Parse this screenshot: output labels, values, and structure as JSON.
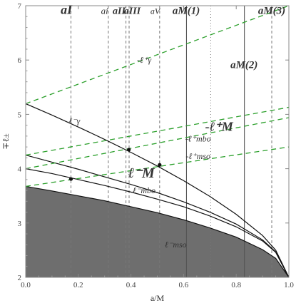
{
  "chart_data": {
    "type": "line",
    "xlabel": "a/M",
    "ylabel": "∓ℓ±",
    "xlim": [
      0,
      1
    ],
    "ylim": [
      2,
      7
    ],
    "grid": false,
    "x_ticks": [
      {
        "value": 0.0,
        "label": "0.0"
      },
      {
        "value": 0.2,
        "label": "0.2"
      },
      {
        "value": 0.4,
        "label": "0.4"
      },
      {
        "value": 0.6,
        "label": "0.6"
      },
      {
        "value": 0.8,
        "label": "0.8"
      },
      {
        "value": 1.0,
        "label": "1.0"
      }
    ],
    "y_ticks": [
      {
        "value": 2,
        "label": "2"
      },
      {
        "value": 3,
        "label": "3"
      },
      {
        "value": 4,
        "label": "4"
      },
      {
        "value": 5,
        "label": "5"
      },
      {
        "value": 6,
        "label": "6"
      },
      {
        "value": 7,
        "label": "7"
      }
    ],
    "shaded_region": {
      "name": "ℓ⁻mso",
      "color": "#6e6e6e"
    },
    "series": [
      {
        "name": "ℓ⁻γ",
        "style": "solid",
        "color": "#111111",
        "x": [
          0,
          0.1,
          0.2,
          0.3,
          0.4,
          0.5,
          0.6,
          0.7,
          0.8,
          0.9,
          0.95,
          1.0
        ],
        "y": [
          5.196,
          4.986,
          4.767,
          4.539,
          4.3,
          4.05,
          3.78,
          3.49,
          3.16,
          2.77,
          2.5,
          2.0
        ]
      },
      {
        "name": "ℓ⁻mbo",
        "style": "solid",
        "color": "#111111",
        "x": [
          0,
          0.1,
          0.2,
          0.3,
          0.4,
          0.5,
          0.6,
          0.7,
          0.8,
          0.9,
          0.95,
          1.0
        ],
        "y": [
          4.0,
          3.91,
          3.8,
          3.69,
          3.57,
          3.44,
          3.3,
          3.13,
          2.93,
          2.67,
          2.46,
          2.0
        ]
      },
      {
        "name": "ℓ⁻mso",
        "style": "solid",
        "color": "#111111",
        "x": [
          0,
          0.1,
          0.2,
          0.3,
          0.4,
          0.5,
          0.6,
          0.7,
          0.8,
          0.9,
          0.95,
          1.0
        ],
        "y": [
          3.674,
          3.59,
          3.5,
          3.41,
          3.3,
          3.19,
          3.06,
          2.91,
          2.74,
          2.51,
          2.35,
          2.0
        ]
      },
      {
        "name": "ℓ⁻M",
        "style": "solid",
        "color": "#111111",
        "x": [
          0,
          0.1,
          0.2,
          0.3,
          0.4,
          0.5,
          0.6,
          0.7,
          0.8,
          0.9,
          0.95,
          1.0
        ],
        "y": [
          4.25,
          4.12,
          3.99,
          3.85,
          3.71,
          3.56,
          3.39,
          3.2,
          2.98,
          2.69,
          2.47,
          2.0
        ]
      },
      {
        "name": "-ℓ⁺γ",
        "style": "dashed",
        "color": "#2ca02c",
        "x": [
          0,
          1
        ],
        "y": [
          5.196,
          7.0
        ]
      },
      {
        "name": "-ℓ⁺mbo",
        "style": "dashed",
        "color": "#2ca02c",
        "x": [
          0,
          1
        ],
        "y": [
          4.0,
          4.94
        ]
      },
      {
        "name": "-ℓ⁺M",
        "style": "dashed",
        "color": "#2ca02c",
        "x": [
          0,
          1
        ],
        "y": [
          4.25,
          5.13
        ]
      },
      {
        "name": "-ℓ⁺mso",
        "style": "dashed",
        "color": "#2ca02c",
        "x": [
          0,
          1
        ],
        "y": [
          3.674,
          4.4
        ]
      }
    ],
    "marked_points": [
      {
        "x": 0.172,
        "y": 3.81
      },
      {
        "x": 0.392,
        "y": 4.35
      },
      {
        "x": 0.509,
        "y": 4.07
      }
    ],
    "vertical_lines": [
      {
        "x": 0.172,
        "style": "dashed",
        "color": "#777777"
      },
      {
        "x": 0.314,
        "style": "dashed",
        "color": "#777777"
      },
      {
        "x": 0.381,
        "style": "dashed",
        "color": "#777777"
      },
      {
        "x": 0.393,
        "style": "dashed",
        "color": "#777777"
      },
      {
        "x": 0.509,
        "style": "dashed",
        "color": "#777777"
      },
      {
        "x": 0.611,
        "style": "solid",
        "color": "#555555"
      },
      {
        "x": 0.703,
        "style": "dotted",
        "color": "#777777"
      },
      {
        "x": 0.831,
        "style": "solid",
        "color": "#555555"
      },
      {
        "x": 0.935,
        "style": "dashed",
        "color": "#777777"
      }
    ],
    "annotations": [
      {
        "text": "aI",
        "x": 0.155,
        "y": 6.85,
        "size": 18,
        "weight": "bold"
      },
      {
        "text": "ai",
        "x": 0.3,
        "y": 6.85,
        "size": 13,
        "weight": "normal"
      },
      {
        "text": "aII",
        "x": 0.355,
        "y": 6.85,
        "size": 14,
        "weight": "bold"
      },
      {
        "text": "aIII",
        "x": 0.405,
        "y": 6.85,
        "size": 14,
        "weight": "bold"
      },
      {
        "text": "aV",
        "x": 0.492,
        "y": 6.85,
        "size": 12,
        "weight": "normal"
      },
      {
        "text": "aM(1)",
        "x": 0.61,
        "y": 6.85,
        "size": 15,
        "weight": "bold"
      },
      {
        "text": "aM(2)",
        "x": 0.83,
        "y": 5.85,
        "size": 15,
        "weight": "bold"
      },
      {
        "text": "aM(3)",
        "x": 0.935,
        "y": 6.85,
        "size": 15,
        "weight": "bold"
      },
      {
        "text": "-ℓ⁺γ",
        "x": 0.45,
        "y": 5.95,
        "size": 12,
        "weight": "normal"
      },
      {
        "text": "ℓ⁻γ",
        "x": 0.185,
        "y": 4.83,
        "size": 12,
        "weight": "normal"
      },
      {
        "text": "-ℓ⁺M",
        "x": 0.735,
        "y": 4.7,
        "size": 18,
        "weight": "bold"
      },
      {
        "text": "-ℓ⁺mbo",
        "x": 0.655,
        "y": 4.5,
        "size": 12,
        "weight": "normal"
      },
      {
        "text": "-ℓ⁺mso",
        "x": 0.655,
        "y": 4.18,
        "size": 12,
        "weight": "normal"
      },
      {
        "text": "ℓ⁻M",
        "x": 0.44,
        "y": 3.84,
        "size": 20,
        "weight": "bold"
      },
      {
        "text": "ℓ⁻mbo",
        "x": 0.45,
        "y": 3.55,
        "size": 12,
        "weight": "normal"
      },
      {
        "text": "ℓ⁻mso",
        "x": 0.57,
        "y": 2.55,
        "size": 12,
        "weight": "normal"
      }
    ]
  }
}
